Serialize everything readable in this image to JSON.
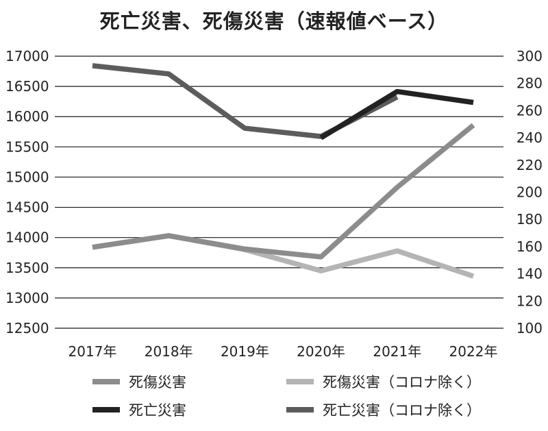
{
  "chart_data": {
    "type": "line",
    "title": "死亡災害、死傷災害（速報値ベース）",
    "categories": [
      "2017年",
      "2018年",
      "2019年",
      "2020年",
      "2021年",
      "2022年"
    ],
    "y_left": {
      "lim": [
        12500,
        17000
      ],
      "ticks": [
        "12500",
        "13000",
        "13500",
        "14000",
        "14500",
        "15000",
        "15500",
        "16000",
        "16500",
        "17000"
      ]
    },
    "y_right": {
      "lim": [
        100,
        300
      ],
      "ticks": [
        "100",
        "120",
        "140",
        "160",
        "180",
        "200",
        "220",
        "240",
        "260",
        "280",
        "300"
      ]
    },
    "grid": true,
    "legend_position": "bottom",
    "series": [
      {
        "name": "死傷災害",
        "axis": "left",
        "color": "#8c8c8c",
        "values": [
          13840,
          14030,
          13810,
          13680,
          14830,
          15860
        ]
      },
      {
        "name": "死傷災害（コロナ除く）",
        "axis": "left",
        "color": "#b4b4b4",
        "values": [
          13840,
          14030,
          13800,
          13450,
          13780,
          13360
        ]
      },
      {
        "name": "死亡災害",
        "axis": "right",
        "color": "#222222",
        "values": [
          null,
          null,
          null,
          240,
          274,
          266
        ]
      },
      {
        "name": "死亡災害（コロナ除く）",
        "axis": "right",
        "color": "#5c5c5c",
        "values": [
          293,
          287,
          247,
          241,
          270,
          null
        ]
      }
    ]
  }
}
